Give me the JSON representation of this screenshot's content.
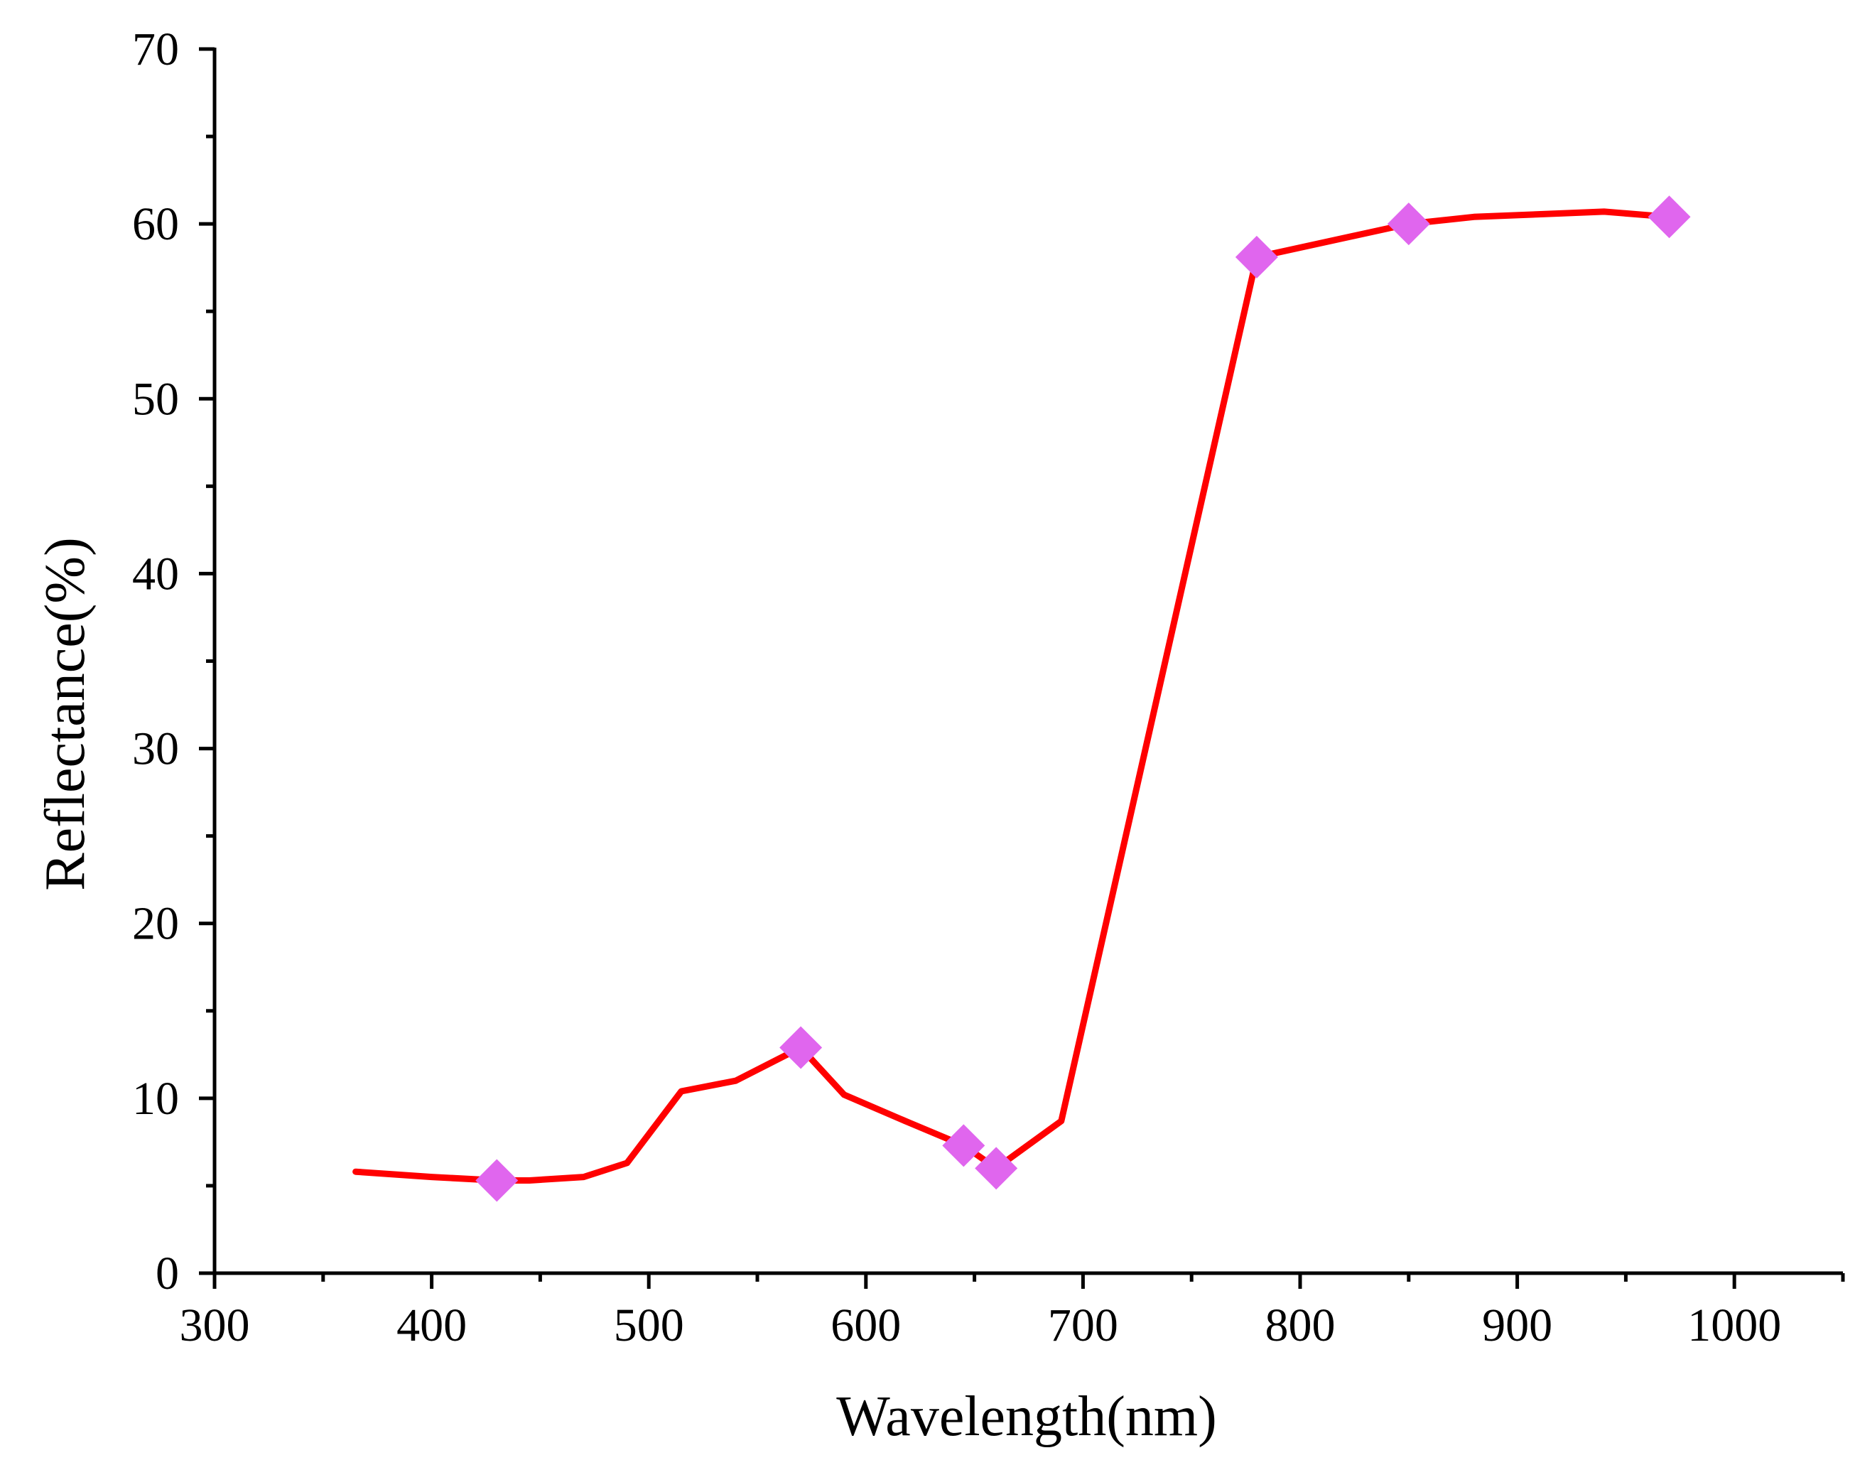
{
  "chart_data": {
    "type": "line",
    "xlabel": "Wavelength(nm)",
    "ylabel": "Reflectance(%)",
    "xlim": [
      300,
      1050
    ],
    "ylim": [
      0,
      70
    ],
    "x_ticks": [
      300,
      400,
      500,
      600,
      700,
      800,
      900,
      1000
    ],
    "y_ticks": [
      0,
      10,
      20,
      30,
      40,
      50,
      60,
      70
    ],
    "grid": false,
    "legend": "none",
    "series": [
      {
        "x": [
          365,
          400,
          430,
          445,
          470,
          490,
          515,
          540,
          570,
          590,
          620,
          645,
          660,
          690,
          780,
          850,
          880,
          920,
          940,
          970
        ],
        "y": [
          5.8,
          5.5,
          5.3,
          5.3,
          5.5,
          6.3,
          10.4,
          11.0,
          12.9,
          10.2,
          8.6,
          7.3,
          6.0,
          8.7,
          58.1,
          60.0,
          60.4,
          60.6,
          60.7,
          60.4
        ],
        "color": "#ff0000"
      }
    ],
    "markers": {
      "shape": "diamond",
      "color": "#e066ee",
      "x": [
        430,
        570,
        645,
        660,
        780,
        850,
        970
      ],
      "y": [
        5.3,
        12.9,
        7.3,
        6.0,
        58.1,
        60.0,
        60.4
      ]
    }
  }
}
